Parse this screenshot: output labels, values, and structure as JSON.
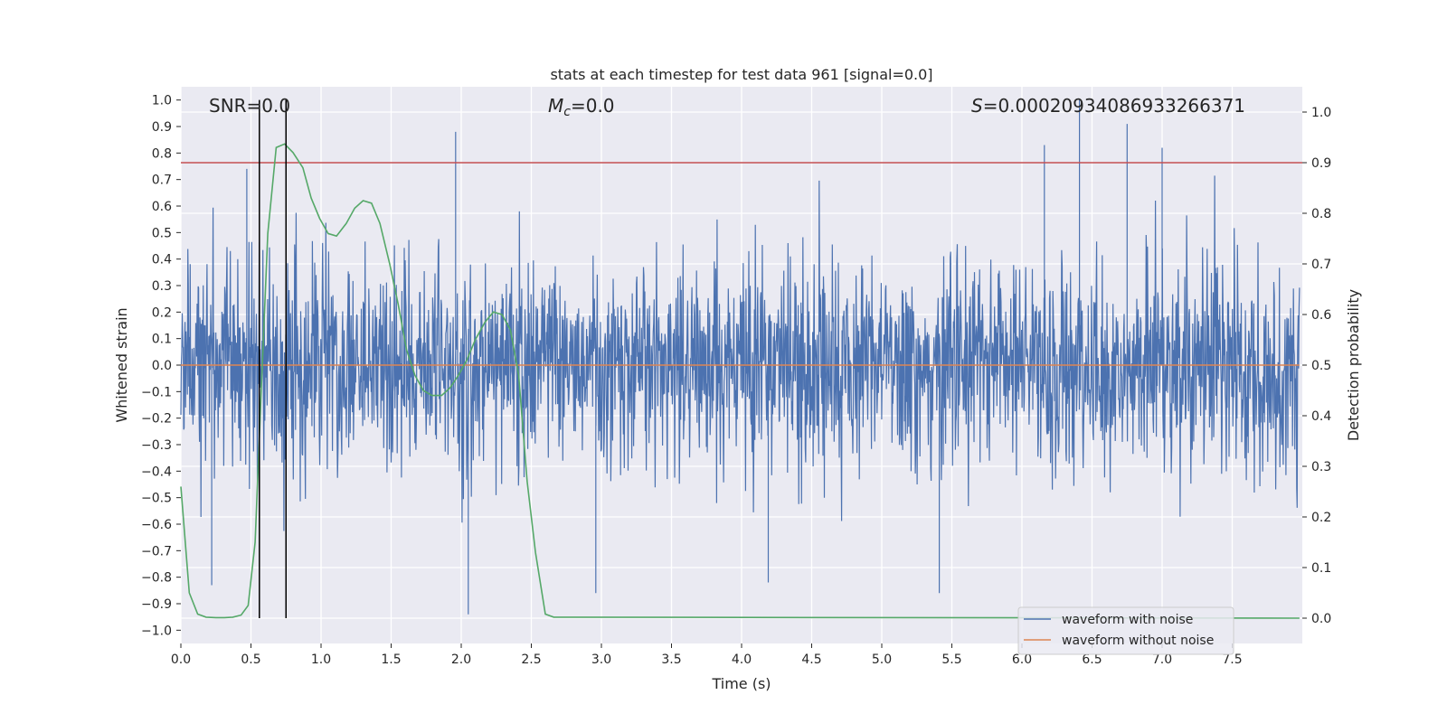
{
  "chart_data": {
    "type": "line",
    "title": "stats at each timestep for test data 961 [signal=0.0]",
    "xlabel": "Time (s)",
    "ylabel_left": "Whitened strain",
    "ylabel_right": "Detection probability",
    "xlim": [
      0.0,
      8.0
    ],
    "ylim_left": [
      -1.05,
      1.05
    ],
    "ylim_right": [
      -0.05,
      1.05
    ],
    "x_ticks": [
      "0.0",
      "0.5",
      "1.0",
      "1.5",
      "2.0",
      "2.5",
      "3.0",
      "3.5",
      "4.0",
      "4.5",
      "5.0",
      "5.5",
      "6.0",
      "6.5",
      "7.0",
      "7.5"
    ],
    "x_tick_values": [
      0.0,
      0.5,
      1.0,
      1.5,
      2.0,
      2.5,
      3.0,
      3.5,
      4.0,
      4.5,
      5.0,
      5.5,
      6.0,
      6.5,
      7.0,
      7.5
    ],
    "y_left_ticks": [
      "1.0",
      "0.9",
      "0.8",
      "0.7",
      "0.6",
      "0.5",
      "0.4",
      "0.3",
      "0.2",
      "0.1",
      "0.0",
      "−0.1",
      "−0.2",
      "−0.3",
      "−0.4",
      "−0.5",
      "−0.6",
      "−0.7",
      "−0.8",
      "−0.9",
      "−1.0"
    ],
    "y_left_tick_values": [
      1.0,
      0.9,
      0.8,
      0.7,
      0.6,
      0.5,
      0.4,
      0.3,
      0.2,
      0.1,
      0.0,
      -0.1,
      -0.2,
      -0.3,
      -0.4,
      -0.5,
      -0.6,
      -0.7,
      -0.8,
      -0.9,
      -1.0
    ],
    "y_right_ticks": [
      "1.0",
      "0.9",
      "0.8",
      "0.7",
      "0.6",
      "0.5",
      "0.4",
      "0.3",
      "0.2",
      "0.1",
      "0.0"
    ],
    "y_right_tick_values": [
      1.0,
      0.9,
      0.8,
      0.7,
      0.6,
      0.5,
      0.4,
      0.3,
      0.2,
      0.1,
      0.0
    ],
    "annotations": {
      "snr": "SNR=0.0",
      "mc_symbol": "M",
      "mc_sub": "c",
      "mc_value": "=0.0",
      "s_symbol": "S",
      "s_value": "=0.00020934086933266371"
    },
    "threshold": {
      "value": 0.9,
      "axis": "right",
      "color": "#c44e52"
    },
    "window_markers_x": [
      0.56,
      0.75
    ],
    "series": [
      {
        "name": "waveform with noise",
        "axis": "left",
        "color": "#4c72b0",
        "kind": "noise",
        "note": "dense whitened strain noise, typical amplitude ~0.4, extremes up to 1.0 / -0.95",
        "notable_peaks": [
          {
            "x": 1.96,
            "y": 0.88
          },
          {
            "x": 6.41,
            "y": 1.0
          },
          {
            "x": 6.75,
            "y": 0.91
          },
          {
            "x": 7.0,
            "y": 0.82
          },
          {
            "x": 6.16,
            "y": 0.83
          },
          {
            "x": 0.47,
            "y": 0.74
          },
          {
            "x": 2.05,
            "y": -0.94
          },
          {
            "x": 5.41,
            "y": -0.86
          },
          {
            "x": 2.96,
            "y": -0.86
          },
          {
            "x": 4.19,
            "y": -0.82
          },
          {
            "x": 0.22,
            "y": -0.83
          }
        ]
      },
      {
        "name": "waveform without noise",
        "axis": "left",
        "color": "#dd8452",
        "x": [
          0.0,
          7.98
        ],
        "y": [
          0.0,
          0.0
        ]
      },
      {
        "name": "detection probability",
        "axis": "right",
        "color": "#55a868",
        "x": [
          0.0,
          0.06,
          0.12,
          0.18,
          0.25,
          0.31,
          0.37,
          0.43,
          0.48,
          0.53,
          0.57,
          0.62,
          0.68,
          0.74,
          0.8,
          0.87,
          0.93,
          0.99,
          1.05,
          1.11,
          1.18,
          1.24,
          1.3,
          1.36,
          1.42,
          1.49,
          1.55,
          1.61,
          1.67,
          1.73,
          1.79,
          1.86,
          1.92,
          1.98,
          2.04,
          2.1,
          2.17,
          2.23,
          2.29,
          2.35,
          2.41,
          2.47,
          2.53,
          2.6,
          2.66,
          7.98
        ],
        "y": [
          0.26,
          0.05,
          0.008,
          0.002,
          0.001,
          0.001,
          0.002,
          0.006,
          0.025,
          0.15,
          0.43,
          0.76,
          0.93,
          0.937,
          0.92,
          0.89,
          0.83,
          0.79,
          0.76,
          0.755,
          0.78,
          0.81,
          0.825,
          0.82,
          0.78,
          0.7,
          0.62,
          0.53,
          0.48,
          0.45,
          0.44,
          0.44,
          0.455,
          0.48,
          0.51,
          0.55,
          0.585,
          0.605,
          0.6,
          0.57,
          0.48,
          0.27,
          0.13,
          0.008,
          0.002,
          0.0
        ]
      }
    ],
    "legend": {
      "position": "lower-right",
      "entries": [
        {
          "label": "waveform with noise",
          "color": "#4c72b0"
        },
        {
          "label": "waveform without noise",
          "color": "#dd8452"
        }
      ]
    }
  }
}
